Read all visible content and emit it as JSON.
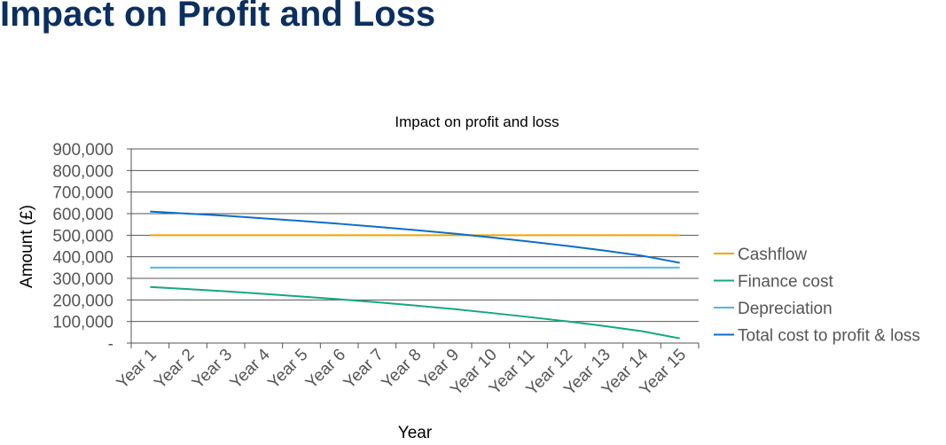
{
  "page_title": "Impact on Profit and Loss",
  "chart_data": {
    "type": "line",
    "title": "Impact on profit and loss",
    "xlabel": "Year",
    "ylabel": "Amount (£)",
    "ylim": [
      0,
      900000
    ],
    "yticks": [
      "-",
      "100,000",
      "200,000",
      "300,000",
      "400,000",
      "500,000",
      "600,000",
      "700,000",
      "800,000",
      "900,000"
    ],
    "categories": [
      "Year 1",
      "Year 2",
      "Year 3",
      "Year 4",
      "Year 5",
      "Year 6",
      "Year 7",
      "Year 8",
      "Year 9",
      "Year 10",
      "Year 11",
      "Year 12",
      "Year 13",
      "Year 14",
      "Year 15"
    ],
    "grid": true,
    "legend": "right",
    "series": [
      {
        "name": "Cashflow",
        "color": "#f0a500",
        "values": [
          500000,
          500000,
          500000,
          500000,
          500000,
          500000,
          500000,
          500000,
          500000,
          500000,
          500000,
          500000,
          500000,
          500000,
          500000
        ]
      },
      {
        "name": "Finance cost",
        "color": "#13a882",
        "values": [
          260000,
          250000,
          240000,
          228000,
          216000,
          203000,
          189000,
          174000,
          158000,
          140000,
          121000,
          101000,
          79000,
          55000,
          22000
        ]
      },
      {
        "name": "Depreciation",
        "color": "#4fb8e8",
        "values": [
          350000,
          350000,
          350000,
          350000,
          350000,
          350000,
          350000,
          350000,
          350000,
          350000,
          350000,
          350000,
          350000,
          350000,
          350000
        ]
      },
      {
        "name": "Total cost to profit & loss",
        "color": "#0a6fc8",
        "values": [
          610000,
          600000,
          590000,
          578000,
          566000,
          553000,
          539000,
          524000,
          508000,
          490000,
          471000,
          451000,
          429000,
          405000,
          372000
        ]
      }
    ]
  }
}
